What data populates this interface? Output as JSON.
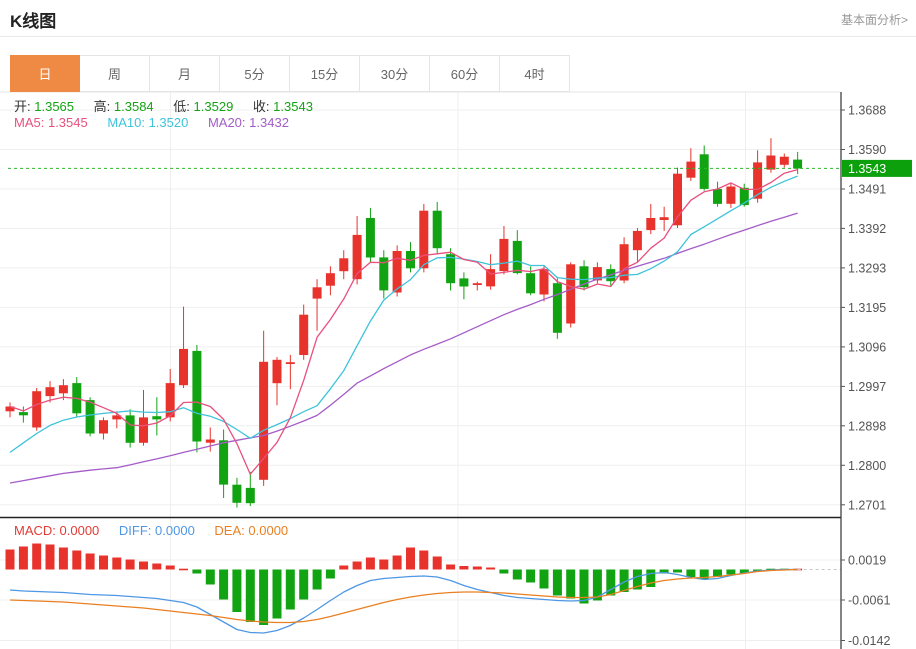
{
  "header": {
    "title": "K线图",
    "link": "基本面分析>"
  },
  "tabs": {
    "items": [
      {
        "label": "日",
        "active": true
      },
      {
        "label": "周",
        "active": false
      },
      {
        "label": "月",
        "active": false
      },
      {
        "label": "5分",
        "active": false
      },
      {
        "label": "15分",
        "active": false
      },
      {
        "label": "30分",
        "active": false
      },
      {
        "label": "60分",
        "active": false
      },
      {
        "label": "4时",
        "active": false
      }
    ]
  },
  "legend_ohlc": [
    {
      "label": "开:",
      "value": "1.3565"
    },
    {
      "label": "高:",
      "value": "1.3584"
    },
    {
      "label": "低:",
      "value": "1.3529"
    },
    {
      "label": "收:",
      "value": "1.3543"
    }
  ],
  "legend_ma": [
    {
      "label": "MA5:",
      "value": "1.3545"
    },
    {
      "label": "MA10:",
      "value": "1.3520"
    },
    {
      "label": "MA20:",
      "value": "1.3432"
    }
  ],
  "legend_macd": [
    {
      "label": "MACD:",
      "value": "0.0000"
    },
    {
      "label": "DIFF:",
      "value": "0.0000"
    },
    {
      "label": "DEA:",
      "value": "0.0000"
    }
  ],
  "colors": {
    "up": "#e8332c",
    "down": "#12a312",
    "ma5": "#e8507e",
    "ma10": "#3ec3da",
    "ma20": "#a55cc8",
    "diff": "#4e97e4",
    "dea": "#ea7f22",
    "badge_bg": "#0ca00c",
    "current_line": "#2eb82e",
    "grid": "#efefef",
    "axis": "#333333",
    "tick_text": "#555555",
    "tab_active_bg": "#ee8a43",
    "zero_dash": "#c8c8c8"
  },
  "chart_data": {
    "type": "candlestick",
    "title": "K线图",
    "current_price": 1.3543,
    "current_price_label": "1.3543",
    "legend_position": "top-left",
    "grid": true,
    "main": {
      "ylim": [
        1.2671,
        1.3733
      ],
      "yticks": [
        1.3688,
        1.359,
        1.3491,
        1.3392,
        1.3293,
        1.3195,
        1.3096,
        1.2997,
        1.2898,
        1.28,
        1.2701
      ],
      "series_note": "candles are [open, high, low, close]; red=up green=down (CN convention)",
      "candles": [
        [
          1.294,
          1.2962,
          1.2925,
          1.2952
        ],
        [
          1.2938,
          1.2952,
          1.2912,
          1.293
        ],
        [
          1.29,
          1.2998,
          1.2892,
          1.299
        ],
        [
          1.2978,
          1.3015,
          1.2962,
          1.3
        ],
        [
          1.2985,
          1.302,
          1.2968,
          1.3005
        ],
        [
          1.301,
          1.3025,
          1.2925,
          1.2935
        ],
        [
          1.2968,
          1.2975,
          1.2878,
          1.2885
        ],
        [
          1.2885,
          1.2925,
          1.287,
          1.2918
        ],
        [
          1.292,
          1.294,
          1.2898,
          1.293
        ],
        [
          1.293,
          1.2945,
          1.285,
          1.2862
        ],
        [
          1.2862,
          1.2993,
          1.2855,
          1.2925
        ],
        [
          1.2928,
          1.2975,
          1.288,
          1.292
        ],
        [
          1.2925,
          1.3045,
          1.2915,
          1.301
        ],
        [
          1.3005,
          1.32,
          1.2998,
          1.3095
        ],
        [
          1.309,
          1.3105,
          1.2838,
          1.2865
        ],
        [
          1.2862,
          1.29,
          1.284,
          1.287
        ],
        [
          1.2868,
          1.2895,
          1.2725,
          1.2758
        ],
        [
          1.2758,
          1.2775,
          1.2701,
          1.2713
        ],
        [
          1.275,
          1.279,
          1.2705,
          1.2712
        ],
        [
          1.277,
          1.314,
          1.2755,
          1.3063
        ],
        [
          1.301,
          1.3075,
          1.2955,
          1.3068
        ],
        [
          1.3058,
          1.308,
          1.2995,
          1.3062
        ],
        [
          1.308,
          1.3205,
          1.3068,
          1.318
        ],
        [
          1.322,
          1.3268,
          1.314,
          1.3248
        ],
        [
          1.3252,
          1.33,
          1.3228,
          1.3283
        ],
        [
          1.3288,
          1.334,
          1.3268,
          1.332
        ],
        [
          1.3268,
          1.3425,
          1.3255,
          1.3378
        ],
        [
          1.342,
          1.3445,
          1.3308,
          1.3322
        ],
        [
          1.3322,
          1.334,
          1.322,
          1.324
        ],
        [
          1.3235,
          1.3352,
          1.3225,
          1.3338
        ],
        [
          1.3338,
          1.336,
          1.3285,
          1.3295
        ],
        [
          1.3295,
          1.3455,
          1.3285,
          1.3438
        ],
        [
          1.3438,
          1.346,
          1.333,
          1.3345
        ],
        [
          1.333,
          1.3345,
          1.324,
          1.3258
        ],
        [
          1.327,
          1.3285,
          1.3218,
          1.325
        ],
        [
          1.3255,
          1.3262,
          1.324,
          1.3258
        ],
        [
          1.325,
          1.333,
          1.3242,
          1.3293
        ],
        [
          1.3288,
          1.34,
          1.328,
          1.3368
        ],
        [
          1.3363,
          1.339,
          1.328,
          1.3283
        ],
        [
          1.3283,
          1.33,
          1.3228,
          1.3233
        ],
        [
          1.323,
          1.33,
          1.3213,
          1.3293
        ],
        [
          1.3258,
          1.327,
          1.312,
          1.3135
        ],
        [
          1.3158,
          1.331,
          1.3148,
          1.3305
        ],
        [
          1.33,
          1.3315,
          1.324,
          1.3248
        ],
        [
          1.3265,
          1.331,
          1.3258,
          1.3298
        ],
        [
          1.3293,
          1.3305,
          1.325,
          1.3263
        ],
        [
          1.3265,
          1.3372,
          1.3258,
          1.3355
        ],
        [
          1.334,
          1.3395,
          1.331,
          1.3388
        ],
        [
          1.339,
          1.3455,
          1.338,
          1.342
        ],
        [
          1.3415,
          1.3448,
          1.3388,
          1.3422
        ],
        [
          1.3402,
          1.3545,
          1.3395,
          1.353
        ],
        [
          1.352,
          1.3593,
          1.3512,
          1.356
        ],
        [
          1.3578,
          1.36,
          1.3488,
          1.3492
        ],
        [
          1.3492,
          1.351,
          1.3448,
          1.3455
        ],
        [
          1.3455,
          1.3505,
          1.3445,
          1.3498
        ],
        [
          1.3495,
          1.3505,
          1.3448,
          1.3452
        ],
        [
          1.3468,
          1.3588,
          1.3458,
          1.3558
        ],
        [
          1.354,
          1.3618,
          1.3532,
          1.3575
        ],
        [
          1.3552,
          1.358,
          1.3545,
          1.3572
        ],
        [
          1.3565,
          1.3584,
          1.3529,
          1.3543
        ]
      ],
      "ma5": [
        1.2952,
        1.2941,
        1.2957,
        1.2968,
        1.2975,
        1.2972,
        1.2963,
        1.2949,
        1.2935,
        1.2906,
        1.2904,
        1.2911,
        1.2929,
        1.2962,
        1.2963,
        1.2952,
        1.292,
        1.286,
        1.2784,
        1.2823,
        1.2863,
        1.2924,
        1.3017,
        1.3124,
        1.3168,
        1.3219,
        1.3282,
        1.331,
        1.3309,
        1.332,
        1.3315,
        1.3327,
        1.3331,
        1.3335,
        1.3317,
        1.331,
        1.3281,
        1.3285,
        1.329,
        1.3287,
        1.3294,
        1.3262,
        1.325,
        1.3243,
        1.3256,
        1.325,
        1.3294,
        1.331,
        1.3345,
        1.337,
        1.3423,
        1.3464,
        1.3485,
        1.3492,
        1.3507,
        1.3491,
        1.3491,
        1.3508,
        1.3531,
        1.354
      ],
      "ma10": [
        1.2838,
        1.2862,
        1.2885,
        1.2905,
        1.2918,
        1.2926,
        1.2931,
        1.2935,
        1.2938,
        1.2941,
        1.2938,
        1.2937,
        1.2939,
        1.2949,
        1.2935,
        1.2928,
        1.2915,
        1.2895,
        1.2873,
        1.2893,
        1.2907,
        1.2922,
        1.2939,
        1.2954,
        1.2996,
        1.3041,
        1.3103,
        1.3164,
        1.3216,
        1.3244,
        1.3267,
        1.3304,
        1.3321,
        1.3322,
        1.3318,
        1.3312,
        1.3304,
        1.3308,
        1.3313,
        1.3302,
        1.3302,
        1.3272,
        1.3268,
        1.3267,
        1.3271,
        1.3272,
        1.3278,
        1.328,
        1.3294,
        1.3313,
        1.3336,
        1.3379,
        1.3398,
        1.3418,
        1.3438,
        1.3457,
        1.3478,
        1.3496,
        1.3511,
        1.3524
      ],
      "ma20": [
        1.2762,
        1.2768,
        1.2774,
        1.278,
        1.2786,
        1.279,
        1.2794,
        1.2797,
        1.28,
        1.2807,
        1.2815,
        1.2822,
        1.283,
        1.2838,
        1.2846,
        1.2854,
        1.2862,
        1.2868,
        1.2874,
        1.288,
        1.2891,
        1.2903,
        1.2916,
        1.293,
        1.2955,
        1.2982,
        1.301,
        1.3028,
        1.3046,
        1.3063,
        1.308,
        1.3094,
        1.3107,
        1.312,
        1.3135,
        1.315,
        1.3165,
        1.318,
        1.3193,
        1.3205,
        1.3218,
        1.323,
        1.3243,
        1.3256,
        1.3268,
        1.3279,
        1.329,
        1.33,
        1.331,
        1.332,
        1.3332,
        1.3344,
        1.3355,
        1.3367,
        1.3379,
        1.339,
        1.3401,
        1.3412,
        1.3422,
        1.3432
      ]
    },
    "macd": {
      "ylim": [
        -0.0165,
        0.0045
      ],
      "yticks": [
        0.0019,
        -0.0061,
        -0.0142
      ],
      "hist": [
        0.004,
        0.0046,
        0.0052,
        0.005,
        0.0044,
        0.0038,
        0.0032,
        0.0028,
        0.0024,
        0.002,
        0.0016,
        0.0012,
        0.0008,
        0.0002,
        -0.0008,
        -0.003,
        -0.006,
        -0.0085,
        -0.0105,
        -0.0111,
        -0.0098,
        -0.008,
        -0.006,
        -0.004,
        -0.0018,
        0.0008,
        0.0016,
        0.0024,
        0.002,
        0.0028,
        0.0044,
        0.0038,
        0.0026,
        0.001,
        0.0007,
        0.0006,
        0.0004,
        -0.0008,
        -0.002,
        -0.0026,
        -0.0038,
        -0.0052,
        -0.0058,
        -0.0068,
        -0.0062,
        -0.0052,
        -0.0045,
        -0.004,
        -0.0035,
        -0.0008,
        -0.0006,
        -0.0015,
        -0.002,
        -0.0015,
        -0.001,
        -0.0008,
        -0.0004,
        -0.0002,
        -0.0001,
        0.0
      ],
      "diff": [
        -0.0041,
        -0.0043,
        -0.0044,
        -0.0045,
        -0.0046,
        -0.0048,
        -0.005,
        -0.0051,
        -0.0052,
        -0.0054,
        -0.0056,
        -0.0058,
        -0.0062,
        -0.0066,
        -0.0075,
        -0.009,
        -0.0105,
        -0.012,
        -0.0126,
        -0.0127,
        -0.0122,
        -0.0112,
        -0.0097,
        -0.008,
        -0.0062,
        -0.0045,
        -0.0032,
        -0.0022,
        -0.0018,
        -0.0016,
        -0.0014,
        -0.0013,
        -0.0015,
        -0.0022,
        -0.0032,
        -0.004,
        -0.0046,
        -0.0052,
        -0.0056,
        -0.0058,
        -0.006,
        -0.0062,
        -0.0063,
        -0.0062,
        -0.0055,
        -0.004,
        -0.0025,
        -0.0014,
        -0.0008,
        -0.0006,
        -0.001,
        -0.0016,
        -0.002,
        -0.0018,
        -0.0012,
        -0.0007,
        -0.0003,
        -0.0001,
        0.0,
        0.0
      ],
      "dea": [
        -0.0061,
        -0.0062,
        -0.0063,
        -0.0064,
        -0.0065,
        -0.0067,
        -0.0069,
        -0.0071,
        -0.0073,
        -0.0075,
        -0.0077,
        -0.008,
        -0.0083,
        -0.0086,
        -0.0089,
        -0.0092,
        -0.0096,
        -0.01,
        -0.0103,
        -0.0105,
        -0.0106,
        -0.0106,
        -0.0104,
        -0.01,
        -0.0094,
        -0.0087,
        -0.008,
        -0.0073,
        -0.0066,
        -0.006,
        -0.0055,
        -0.0051,
        -0.0048,
        -0.0046,
        -0.0045,
        -0.0045,
        -0.0046,
        -0.0047,
        -0.0049,
        -0.0051,
        -0.0053,
        -0.0055,
        -0.0056,
        -0.0056,
        -0.0055,
        -0.005,
        -0.0042,
        -0.0034,
        -0.0027,
        -0.0022,
        -0.0019,
        -0.0017,
        -0.0016,
        -0.0014,
        -0.0011,
        -0.0008,
        -0.0004,
        -0.0002,
        -0.0001,
        0.0
      ]
    }
  }
}
